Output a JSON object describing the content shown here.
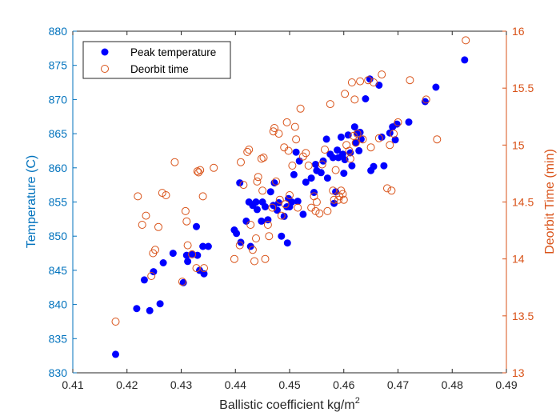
{
  "chart_data": {
    "type": "scatter",
    "title": "",
    "xlabel": "Ballistic coefficient kg/m",
    "xlabel_superscript": "2",
    "ylabel_left": "Temperature (C)",
    "ylabel_right": "Deorbit Time (min)",
    "xlim": [
      0.41,
      0.49
    ],
    "ylim_left": [
      830,
      880
    ],
    "ylim_right": [
      13,
      16
    ],
    "xticks": [
      "0.41",
      "0.42",
      "0.43",
      "0.44",
      "0.45",
      "0.46",
      "0.47",
      "0.48",
      "0.49"
    ],
    "yticks_left": [
      "830",
      "835",
      "840",
      "845",
      "850",
      "855",
      "860",
      "865",
      "870",
      "875",
      "880"
    ],
    "yticks_right": [
      "13",
      "13.5",
      "14",
      "14.5",
      "15",
      "15.5",
      "16"
    ],
    "grid": false,
    "legend_position": "top-left",
    "colors": {
      "left_axis": "#0072BD",
      "right_axis": "#D95319",
      "temperature_marker": "#0000FF",
      "deorbit_marker": "#D95319"
    },
    "series": [
      {
        "name": "Peak temperature",
        "axis": "left",
        "marker": "filled-circle",
        "points": [
          [
            0.4179,
            832.7
          ],
          [
            0.4218,
            839.4
          ],
          [
            0.4232,
            843.6
          ],
          [
            0.4242,
            839.1
          ],
          [
            0.4249,
            844.8
          ],
          [
            0.4261,
            840.1
          ],
          [
            0.4267,
            846.1
          ],
          [
            0.4285,
            847.5
          ],
          [
            0.4304,
            843.2
          ],
          [
            0.431,
            847.2
          ],
          [
            0.4312,
            846.3
          ],
          [
            0.432,
            847.4
          ],
          [
            0.4328,
            851.4
          ],
          [
            0.433,
            847.2
          ],
          [
            0.4334,
            845.0
          ],
          [
            0.434,
            848.5
          ],
          [
            0.4342,
            844.5
          ],
          [
            0.435,
            848.5
          ],
          [
            0.4398,
            850.9
          ],
          [
            0.4402,
            850.4
          ],
          [
            0.4408,
            857.8
          ],
          [
            0.441,
            849.1
          ],
          [
            0.442,
            852.2
          ],
          [
            0.4425,
            855.0
          ],
          [
            0.4428,
            848.5
          ],
          [
            0.4432,
            854.5
          ],
          [
            0.4438,
            855.0
          ],
          [
            0.444,
            853.9
          ],
          [
            0.4448,
            852.2
          ],
          [
            0.445,
            855.0
          ],
          [
            0.4455,
            854.3
          ],
          [
            0.446,
            852.4
          ],
          [
            0.4465,
            856.5
          ],
          [
            0.447,
            854.5
          ],
          [
            0.4472,
            857.8
          ],
          [
            0.4477,
            853.8
          ],
          [
            0.448,
            854.9
          ],
          [
            0.4485,
            850.0
          ],
          [
            0.449,
            852.9
          ],
          [
            0.4495,
            854.3
          ],
          [
            0.4496,
            849.0
          ],
          [
            0.4498,
            855.5
          ],
          [
            0.45,
            854.3
          ],
          [
            0.4504,
            855.0
          ],
          [
            0.4508,
            859.0
          ],
          [
            0.4512,
            862.3
          ],
          [
            0.4515,
            855.1
          ],
          [
            0.4518,
            861.0
          ],
          [
            0.4525,
            853.2
          ],
          [
            0.453,
            857.9
          ],
          [
            0.454,
            858.5
          ],
          [
            0.4545,
            856.4
          ],
          [
            0.4548,
            860.5
          ],
          [
            0.455,
            859.6
          ],
          [
            0.4558,
            859.3
          ],
          [
            0.4562,
            861.0
          ],
          [
            0.4568,
            864.2
          ],
          [
            0.457,
            858.5
          ],
          [
            0.4575,
            862.0
          ],
          [
            0.458,
            861.5
          ],
          [
            0.4582,
            854.8
          ],
          [
            0.4585,
            856.5
          ],
          [
            0.4588,
            862.6
          ],
          [
            0.459,
            861.5
          ],
          [
            0.4595,
            864.5
          ],
          [
            0.4598,
            862.0
          ],
          [
            0.46,
            859.2
          ],
          [
            0.4602,
            861.2
          ],
          [
            0.4608,
            864.8
          ],
          [
            0.4612,
            862.2
          ],
          [
            0.4615,
            860.3
          ],
          [
            0.462,
            866.0
          ],
          [
            0.4622,
            863.7
          ],
          [
            0.4625,
            865.1
          ],
          [
            0.4628,
            862.5
          ],
          [
            0.463,
            865.2
          ],
          [
            0.4632,
            864.2
          ],
          [
            0.464,
            870.1
          ],
          [
            0.4648,
            873.0
          ],
          [
            0.465,
            859.6
          ],
          [
            0.4655,
            860.2
          ],
          [
            0.4665,
            872.1
          ],
          [
            0.467,
            864.5
          ],
          [
            0.4674,
            860.3
          ],
          [
            0.4685,
            865.1
          ],
          [
            0.469,
            866.0
          ],
          [
            0.4695,
            864.1
          ],
          [
            0.4698,
            866.4
          ],
          [
            0.472,
            866.7
          ],
          [
            0.475,
            869.7
          ],
          [
            0.477,
            871.8
          ],
          [
            0.4823,
            875.8
          ]
        ]
      },
      {
        "name": "Deorbit time",
        "axis": "right",
        "marker": "open-circle",
        "points": [
          [
            0.4179,
            13.45
          ],
          [
            0.422,
            14.55
          ],
          [
            0.4228,
            14.3
          ],
          [
            0.4235,
            14.38
          ],
          [
            0.4245,
            13.85
          ],
          [
            0.4248,
            14.05
          ],
          [
            0.4252,
            14.08
          ],
          [
            0.4258,
            14.28
          ],
          [
            0.4265,
            14.58
          ],
          [
            0.4272,
            14.56
          ],
          [
            0.4288,
            14.85
          ],
          [
            0.4302,
            13.8
          ],
          [
            0.4308,
            14.42
          ],
          [
            0.431,
            14.33
          ],
          [
            0.4312,
            14.12
          ],
          [
            0.432,
            14.04
          ],
          [
            0.4328,
            13.92
          ],
          [
            0.433,
            14.77
          ],
          [
            0.4332,
            14.76
          ],
          [
            0.4335,
            14.78
          ],
          [
            0.434,
            14.55
          ],
          [
            0.4342,
            13.92
          ],
          [
            0.436,
            14.8
          ],
          [
            0.4398,
            14.0
          ],
          [
            0.4408,
            14.12
          ],
          [
            0.441,
            14.85
          ],
          [
            0.4415,
            14.65
          ],
          [
            0.4422,
            14.94
          ],
          [
            0.4425,
            14.96
          ],
          [
            0.4428,
            14.3
          ],
          [
            0.4432,
            14.08
          ],
          [
            0.4435,
            13.98
          ],
          [
            0.4438,
            14.18
          ],
          [
            0.444,
            14.68
          ],
          [
            0.4442,
            14.72
          ],
          [
            0.4448,
            14.88
          ],
          [
            0.445,
            14.6
          ],
          [
            0.4452,
            14.89
          ],
          [
            0.4455,
            14.0
          ],
          [
            0.446,
            14.3
          ],
          [
            0.4462,
            14.2
          ],
          [
            0.4468,
            14.45
          ],
          [
            0.447,
            15.12
          ],
          [
            0.4472,
            15.15
          ],
          [
            0.4475,
            14.68
          ],
          [
            0.448,
            15.1
          ],
          [
            0.4482,
            14.52
          ],
          [
            0.4485,
            14.38
          ],
          [
            0.449,
            14.98
          ],
          [
            0.4492,
            14.48
          ],
          [
            0.4495,
            15.2
          ],
          [
            0.4498,
            14.95
          ],
          [
            0.45,
            14.56
          ],
          [
            0.4505,
            14.82
          ],
          [
            0.451,
            15.16
          ],
          [
            0.4512,
            15.05
          ],
          [
            0.4515,
            14.45
          ],
          [
            0.452,
            15.32
          ],
          [
            0.4525,
            14.9
          ],
          [
            0.453,
            14.93
          ],
          [
            0.4535,
            14.82
          ],
          [
            0.454,
            14.45
          ],
          [
            0.4545,
            14.55
          ],
          [
            0.4548,
            14.42
          ],
          [
            0.455,
            14.5
          ],
          [
            0.4555,
            14.4
          ],
          [
            0.456,
            14.83
          ],
          [
            0.4565,
            14.96
          ],
          [
            0.457,
            14.42
          ],
          [
            0.4575,
            15.36
          ],
          [
            0.458,
            14.6
          ],
          [
            0.4582,
            14.52
          ],
          [
            0.4585,
            14.78
          ],
          [
            0.459,
            14.52
          ],
          [
            0.4592,
            14.55
          ],
          [
            0.4595,
            14.6
          ],
          [
            0.4598,
            14.57
          ],
          [
            0.46,
            14.52
          ],
          [
            0.4602,
            15.45
          ],
          [
            0.4605,
            15.0
          ],
          [
            0.461,
            14.95
          ],
          [
            0.4612,
            14.88
          ],
          [
            0.4615,
            15.55
          ],
          [
            0.4618,
            15.08
          ],
          [
            0.462,
            15.4
          ],
          [
            0.4622,
            15.02
          ],
          [
            0.4625,
            15.1
          ],
          [
            0.463,
            15.56
          ],
          [
            0.4635,
            15.05
          ],
          [
            0.4645,
            15.57
          ],
          [
            0.465,
            14.98
          ],
          [
            0.4655,
            15.55
          ],
          [
            0.4665,
            15.06
          ],
          [
            0.467,
            15.62
          ],
          [
            0.468,
            14.62
          ],
          [
            0.4685,
            15.0
          ],
          [
            0.4688,
            14.6
          ],
          [
            0.4692,
            15.1
          ],
          [
            0.47,
            15.2
          ],
          [
            0.4722,
            15.57
          ],
          [
            0.4752,
            15.4
          ],
          [
            0.4772,
            15.05
          ],
          [
            0.4825,
            15.92
          ]
        ]
      }
    ]
  }
}
